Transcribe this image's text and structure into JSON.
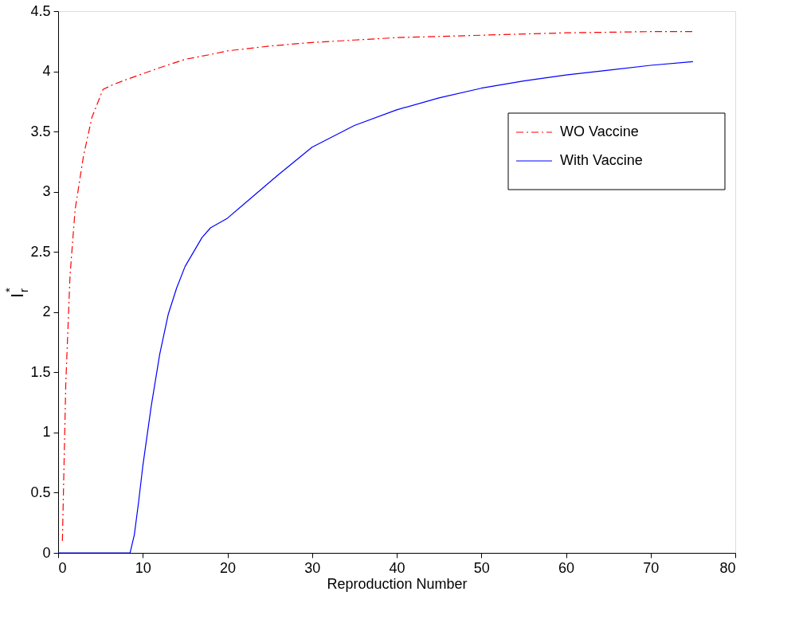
{
  "chart_data": {
    "type": "line",
    "xlabel": "Reproduction Number",
    "ylabel": "I$_{r}$$^{*}$",
    "xlim": [
      0,
      80
    ],
    "xticks": [
      0,
      10,
      20,
      30,
      40,
      50,
      60,
      70,
      80
    ],
    "ylim": [
      0,
      4.5
    ],
    "yticks": [
      0,
      0.5,
      1,
      1.5,
      2,
      2.5,
      3,
      3.5,
      4,
      4.5
    ],
    "grid": false,
    "legend": "top right",
    "marker": "none",
    "series": [
      {
        "name": "WO Vaccine",
        "color": "#ff0000",
        "line_style": "dashed",
        "x": [
          0.5,
          0.9,
          1.4,
          2,
          3,
          4,
          5.3,
          6.5,
          8,
          10,
          12,
          15,
          18,
          20,
          25,
          30,
          35,
          40,
          50,
          60,
          70,
          75
        ],
        "values": [
          0.1,
          1.4,
          2.3,
          2.85,
          3.3,
          3.62,
          3.85,
          3.89,
          3.93,
          3.98,
          4.03,
          4.1,
          4.14,
          4.17,
          4.21,
          4.24,
          4.26,
          4.28,
          4.3,
          4.32,
          4.33,
          4.33
        ]
      },
      {
        "name": "With Vaccine",
        "color": "#0000ff",
        "line_style": "solid",
        "x": [
          0,
          8.5,
          9,
          9.5,
          10,
          11,
          12,
          13,
          14,
          15,
          17,
          18,
          20,
          22,
          25,
          26,
          30,
          35,
          40,
          45,
          50,
          55,
          60,
          65,
          70,
          75
        ],
        "values": [
          0,
          0,
          0.15,
          0.42,
          0.72,
          1.22,
          1.65,
          1.98,
          2.2,
          2.38,
          2.62,
          2.7,
          2.78,
          2.9,
          3.08,
          3.14,
          3.37,
          3.55,
          3.68,
          3.78,
          3.86,
          3.92,
          3.97,
          4.01,
          4.05,
          4.08
        ]
      }
    ]
  }
}
